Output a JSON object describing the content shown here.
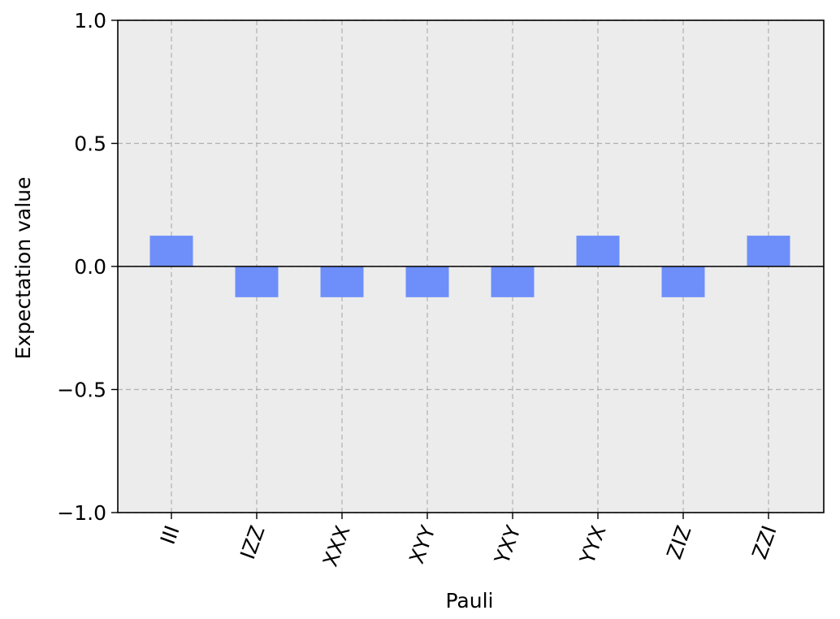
{
  "chart_data": {
    "type": "bar",
    "title": "",
    "xlabel": "Pauli",
    "ylabel": "Expectation value",
    "categories": [
      "III",
      "IZZ",
      "XXX",
      "XYY",
      "YXY",
      "YYX",
      "ZIZ",
      "ZZI"
    ],
    "values": [
      0.125,
      -0.125,
      -0.125,
      -0.125,
      -0.125,
      0.125,
      -0.125,
      0.125
    ],
    "ylim": [
      -1.0,
      1.0
    ],
    "yticks": [
      -1.0,
      -0.5,
      0.0,
      0.5,
      1.0
    ],
    "ytick_labels": [
      "−1.0",
      "−0.5",
      "0.0",
      "0.5",
      "1.0"
    ],
    "grid": true,
    "colors": {
      "bar": "#6e8ffa",
      "plot_background": "#ececec",
      "grid": "#b0b0b0",
      "zero_line": "#000000"
    }
  }
}
